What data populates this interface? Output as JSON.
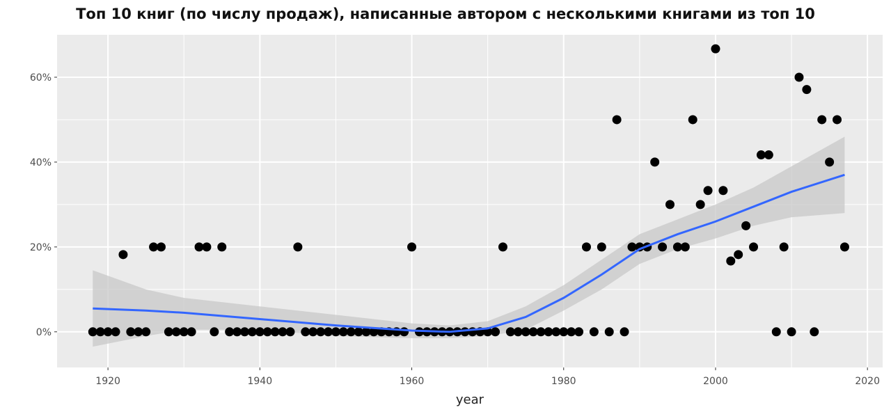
{
  "chart_data": {
    "type": "scatter",
    "title": "Топ 10 книг (по числу продаж), написанные автором с несколькими книгами из топ 10",
    "xlabel": "year",
    "ylabel": "",
    "xlim": [
      1913.3,
      2022
    ],
    "ylim": [
      -8.4,
      70
    ],
    "x_ticks": [
      1920,
      1940,
      1960,
      1980,
      2000,
      2020
    ],
    "y_ticks": [
      0,
      20,
      40,
      60
    ],
    "y_tick_labels": [
      "0%",
      "20%",
      "40%",
      "60%"
    ],
    "grid": true,
    "colors": {
      "panel": "#ebebeb",
      "grid": "#ffffff",
      "points": "#000000",
      "smooth": "#3366ff",
      "ribbon": "#c8c8c8"
    },
    "points": [
      [
        1918,
        0
      ],
      [
        1919,
        0
      ],
      [
        1920,
        0
      ],
      [
        1921,
        0
      ],
      [
        1922,
        18.2
      ],
      [
        1923,
        0
      ],
      [
        1924,
        0
      ],
      [
        1925,
        0
      ],
      [
        1926,
        20
      ],
      [
        1927,
        20
      ],
      [
        1928,
        0
      ],
      [
        1929,
        0
      ],
      [
        1930,
        0
      ],
      [
        1931,
        0
      ],
      [
        1932,
        20
      ],
      [
        1933,
        20
      ],
      [
        1934,
        0
      ],
      [
        1935,
        20
      ],
      [
        1936,
        0
      ],
      [
        1937,
        0
      ],
      [
        1938,
        0
      ],
      [
        1939,
        0
      ],
      [
        1940,
        0
      ],
      [
        1941,
        0
      ],
      [
        1942,
        0
      ],
      [
        1943,
        0
      ],
      [
        1944,
        0
      ],
      [
        1945,
        20
      ],
      [
        1946,
        0
      ],
      [
        1947,
        0
      ],
      [
        1948,
        0
      ],
      [
        1949,
        0
      ],
      [
        1950,
        0
      ],
      [
        1951,
        0
      ],
      [
        1952,
        0
      ],
      [
        1953,
        0
      ],
      [
        1954,
        0
      ],
      [
        1955,
        0
      ],
      [
        1956,
        0
      ],
      [
        1957,
        0
      ],
      [
        1958,
        0
      ],
      [
        1959,
        0
      ],
      [
        1960,
        20
      ],
      [
        1961,
        0
      ],
      [
        1962,
        0
      ],
      [
        1963,
        0
      ],
      [
        1964,
        0
      ],
      [
        1965,
        0
      ],
      [
        1966,
        0
      ],
      [
        1967,
        0
      ],
      [
        1968,
        0
      ],
      [
        1969,
        0
      ],
      [
        1970,
        0
      ],
      [
        1971,
        0
      ],
      [
        1972,
        20
      ],
      [
        1973,
        0
      ],
      [
        1974,
        0
      ],
      [
        1975,
        0
      ],
      [
        1976,
        0
      ],
      [
        1977,
        0
      ],
      [
        1978,
        0
      ],
      [
        1979,
        0
      ],
      [
        1980,
        0
      ],
      [
        1981,
        0
      ],
      [
        1982,
        0
      ],
      [
        1983,
        20
      ],
      [
        1984,
        0
      ],
      [
        1985,
        20
      ],
      [
        1986,
        0
      ],
      [
        1987,
        50
      ],
      [
        1988,
        0
      ],
      [
        1989,
        20
      ],
      [
        1990,
        20
      ],
      [
        1991,
        20
      ],
      [
        1992,
        40
      ],
      [
        1993,
        20
      ],
      [
        1994,
        30
      ],
      [
        1995,
        20
      ],
      [
        1996,
        20
      ],
      [
        1997,
        50
      ],
      [
        1998,
        30
      ],
      [
        1999,
        33.3
      ],
      [
        2000,
        66.7
      ],
      [
        2001,
        33.3
      ],
      [
        2002,
        16.7
      ],
      [
        2003,
        18.2
      ],
      [
        2004,
        25
      ],
      [
        2005,
        20
      ],
      [
        2006,
        41.7
      ],
      [
        2007,
        41.7
      ],
      [
        2008,
        0
      ],
      [
        2009,
        20
      ],
      [
        2010,
        0
      ],
      [
        2011,
        60
      ],
      [
        2012,
        57.1
      ],
      [
        2013,
        0
      ],
      [
        2014,
        50
      ],
      [
        2015,
        40
      ],
      [
        2016,
        50
      ],
      [
        2017,
        20
      ]
    ],
    "smooth": {
      "x": [
        1918,
        1925,
        1930,
        1940,
        1950,
        1960,
        1965,
        1970,
        1975,
        1980,
        1985,
        1990,
        1995,
        2000,
        2005,
        2010,
        2017
      ],
      "y": [
        5.5,
        5,
        4.5,
        3,
        1.5,
        0.3,
        0,
        0.8,
        3.5,
        8,
        13.5,
        19.5,
        23,
        26,
        29.5,
        33,
        37
      ],
      "lower": [
        -3.5,
        -1,
        0.5,
        0.5,
        -1,
        -1.5,
        -1.5,
        -1,
        0.5,
        5,
        10,
        16,
        19.5,
        22,
        25,
        27,
        28
      ],
      "upper": [
        14.5,
        10,
        8,
        6,
        4,
        2,
        1.5,
        2.5,
        6,
        11,
        17,
        23,
        26.5,
        30,
        34,
        39,
        46
      ]
    }
  }
}
